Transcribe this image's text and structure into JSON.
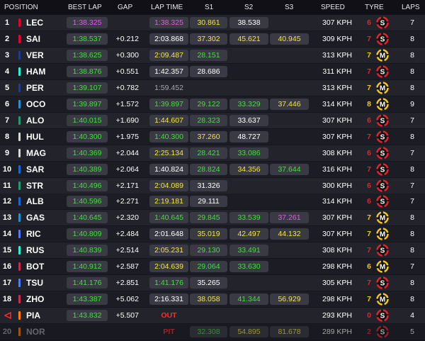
{
  "header": {
    "columns": [
      "POSITION",
      "BEST LAP",
      "GAP",
      "LAP TIME",
      "S1",
      "S2",
      "S3",
      "SPEED",
      "TYRE",
      "LAPS"
    ]
  },
  "status_colors": {
    "purple": "#e05ce6",
    "green": "#3fe03a",
    "yellow": "#f4e63c",
    "white": "#ffffff",
    "grey": "#a8a8ae",
    "red": "#ff2b2b"
  },
  "rows": [
    {
      "position": 1,
      "team_color": "#e8002d",
      "driver": "LEC",
      "best_lap": {
        "text": "1:38.325",
        "status": "purple"
      },
      "gap": null,
      "lap_time": {
        "text": "1:38.325",
        "status": "purple"
      },
      "s1": {
        "text": "30.861",
        "status": "yellow"
      },
      "s2": {
        "text": "38.538",
        "status": "white"
      },
      "s3": null,
      "speed": "307 KPH",
      "tyre": {
        "laps": 6,
        "compound": "S",
        "color": "#e8222d"
      },
      "laps": 7
    },
    {
      "position": 2,
      "team_color": "#e8002d",
      "driver": "SAI",
      "best_lap": {
        "text": "1:38.537",
        "status": "green"
      },
      "gap": "+0.212",
      "lap_time": {
        "text": "2:03.868",
        "status": "white"
      },
      "s1": {
        "text": "37.302",
        "status": "yellow"
      },
      "s2": {
        "text": "45.621",
        "status": "yellow"
      },
      "s3": {
        "text": "40.945",
        "status": "yellow"
      },
      "speed": "309 KPH",
      "tyre": {
        "laps": 7,
        "compound": "S",
        "color": "#e8222d"
      },
      "laps": 8
    },
    {
      "position": 3,
      "team_color": "#1e3d8f",
      "driver": "VER",
      "best_lap": {
        "text": "1:38.625",
        "status": "green"
      },
      "gap": "+0.300",
      "lap_time": {
        "text": "2:09.487",
        "status": "yellow"
      },
      "s1": {
        "text": "28.151",
        "status": "green"
      },
      "s2": null,
      "s3": null,
      "speed": "313 KPH",
      "tyre": {
        "laps": 7,
        "compound": "M",
        "color": "#f3c71b"
      },
      "laps": 8
    },
    {
      "position": 4,
      "team_color": "#27f4d2",
      "driver": "HAM",
      "best_lap": {
        "text": "1:38.876",
        "status": "green"
      },
      "gap": "+0.551",
      "lap_time": {
        "text": "1:42.357",
        "status": "white"
      },
      "s1": {
        "text": "28.686",
        "status": "white"
      },
      "s2": null,
      "s3": null,
      "speed": "311 KPH",
      "tyre": {
        "laps": 7,
        "compound": "S",
        "color": "#e8222d"
      },
      "laps": 8
    },
    {
      "position": 5,
      "team_color": "#1e3d8f",
      "driver": "PER",
      "best_lap": {
        "text": "1:39.107",
        "status": "green"
      },
      "gap": "+0.782",
      "lap_time": {
        "text": "1:59.452",
        "status": "grey"
      },
      "s1": null,
      "s2": null,
      "s3": null,
      "speed": "313 KPH",
      "tyre": {
        "laps": 7,
        "compound": "M",
        "color": "#f3c71b"
      },
      "laps": 8
    },
    {
      "position": 6,
      "team_color": "#2293d1",
      "driver": "OCO",
      "best_lap": {
        "text": "1:39.897",
        "status": "green"
      },
      "gap": "+1.572",
      "lap_time": {
        "text": "1:39.897",
        "status": "green"
      },
      "s1": {
        "text": "29.122",
        "status": "green"
      },
      "s2": {
        "text": "33.329",
        "status": "green"
      },
      "s3": {
        "text": "37.446",
        "status": "yellow"
      },
      "speed": "314 KPH",
      "tyre": {
        "laps": 8,
        "compound": "M",
        "color": "#f3c71b"
      },
      "laps": 9
    },
    {
      "position": 7,
      "team_color": "#229971",
      "driver": "ALO",
      "best_lap": {
        "text": "1:40.015",
        "status": "green"
      },
      "gap": "+1.690",
      "lap_time": {
        "text": "1:44.607",
        "status": "yellow"
      },
      "s1": {
        "text": "28.323",
        "status": "green"
      },
      "s2": {
        "text": "33.637",
        "status": "white"
      },
      "s3": null,
      "speed": "307 KPH",
      "tyre": {
        "laps": 6,
        "compound": "S",
        "color": "#e8222d"
      },
      "laps": 7
    },
    {
      "position": 8,
      "team_color": "#d8d8d8",
      "driver": "HUL",
      "best_lap": {
        "text": "1:40.300",
        "status": "green"
      },
      "gap": "+1.975",
      "lap_time": {
        "text": "1:40.300",
        "status": "green"
      },
      "s1": {
        "text": "37.260",
        "status": "yellow"
      },
      "s2": {
        "text": "48.727",
        "status": "white"
      },
      "s3": null,
      "speed": "307 KPH",
      "tyre": {
        "laps": 7,
        "compound": "S",
        "color": "#e8222d"
      },
      "laps": 8
    },
    {
      "position": 9,
      "team_color": "#d8d8d8",
      "driver": "MAG",
      "best_lap": {
        "text": "1:40.369",
        "status": "green"
      },
      "gap": "+2.044",
      "lap_time": {
        "text": "2:25.134",
        "status": "yellow"
      },
      "s1": {
        "text": "28.421",
        "status": "green"
      },
      "s2": {
        "text": "33.086",
        "status": "green"
      },
      "s3": null,
      "speed": "308 KPH",
      "tyre": {
        "laps": 6,
        "compound": "S",
        "color": "#e8222d"
      },
      "laps": 7
    },
    {
      "position": 10,
      "team_color": "#1868db",
      "driver": "SAR",
      "best_lap": {
        "text": "1:40.389",
        "status": "green"
      },
      "gap": "+2.064",
      "lap_time": {
        "text": "1:40.824",
        "status": "white"
      },
      "s1": {
        "text": "28.824",
        "status": "green"
      },
      "s2": {
        "text": "34.356",
        "status": "yellow"
      },
      "s3": {
        "text": "37.644",
        "status": "green"
      },
      "speed": "316 KPH",
      "tyre": {
        "laps": 7,
        "compound": "S",
        "color": "#e8222d"
      },
      "laps": 8
    },
    {
      "position": 11,
      "team_color": "#229971",
      "driver": "STR",
      "best_lap": {
        "text": "1:40.496",
        "status": "green"
      },
      "gap": "+2.171",
      "lap_time": {
        "text": "2:04.089",
        "status": "yellow"
      },
      "s1": {
        "text": "31.326",
        "status": "white"
      },
      "s2": null,
      "s3": null,
      "speed": "300 KPH",
      "tyre": {
        "laps": 6,
        "compound": "S",
        "color": "#e8222d"
      },
      "laps": 7
    },
    {
      "position": 12,
      "team_color": "#1868db",
      "driver": "ALB",
      "best_lap": {
        "text": "1:40.596",
        "status": "green"
      },
      "gap": "+2.271",
      "lap_time": {
        "text": "2:19.181",
        "status": "yellow"
      },
      "s1": {
        "text": "29.111",
        "status": "white"
      },
      "s2": null,
      "s3": null,
      "speed": "314 KPH",
      "tyre": {
        "laps": 6,
        "compound": "S",
        "color": "#e8222d"
      },
      "laps": 7
    },
    {
      "position": 13,
      "team_color": "#2293d1",
      "driver": "GAS",
      "best_lap": {
        "text": "1:40.645",
        "status": "green"
      },
      "gap": "+2.320",
      "lap_time": {
        "text": "1:40.645",
        "status": "green"
      },
      "s1": {
        "text": "29.845",
        "status": "green"
      },
      "s2": {
        "text": "33.539",
        "status": "green"
      },
      "s3": {
        "text": "37.261",
        "status": "purple"
      },
      "speed": "307 KPH",
      "tyre": {
        "laps": 7,
        "compound": "M",
        "color": "#f3c71b"
      },
      "laps": 8
    },
    {
      "position": 14,
      "team_color": "#4e7cff",
      "driver": "RIC",
      "best_lap": {
        "text": "1:40.809",
        "status": "green"
      },
      "gap": "+2.484",
      "lap_time": {
        "text": "2:01.648",
        "status": "white"
      },
      "s1": {
        "text": "35.019",
        "status": "yellow"
      },
      "s2": {
        "text": "42.497",
        "status": "yellow"
      },
      "s3": {
        "text": "44.132",
        "status": "yellow"
      },
      "speed": "307 KPH",
      "tyre": {
        "laps": 7,
        "compound": "M",
        "color": "#f3c71b"
      },
      "laps": 8
    },
    {
      "position": 15,
      "team_color": "#27f4d2",
      "driver": "RUS",
      "best_lap": {
        "text": "1:40.839",
        "status": "green"
      },
      "gap": "+2.514",
      "lap_time": {
        "text": "2:05.231",
        "status": "yellow"
      },
      "s1": {
        "text": "29.130",
        "status": "green"
      },
      "s2": {
        "text": "33.491",
        "status": "green"
      },
      "s3": null,
      "speed": "308 KPH",
      "tyre": {
        "laps": 7,
        "compound": "S",
        "color": "#e8222d"
      },
      "laps": 8
    },
    {
      "position": 16,
      "team_color": "#c92d4b",
      "driver": "BOT",
      "best_lap": {
        "text": "1:40.912",
        "status": "green"
      },
      "gap": "+2.587",
      "lap_time": {
        "text": "2:04.639",
        "status": "yellow"
      },
      "s1": {
        "text": "29.064",
        "status": "green"
      },
      "s2": {
        "text": "33.630",
        "status": "green"
      },
      "s3": null,
      "speed": "298 KPH",
      "tyre": {
        "laps": 6,
        "compound": "M",
        "color": "#f3c71b"
      },
      "laps": 7
    },
    {
      "position": 17,
      "team_color": "#4e7cff",
      "driver": "TSU",
      "best_lap": {
        "text": "1:41.176",
        "status": "green"
      },
      "gap": "+2.851",
      "lap_time": {
        "text": "1:41.176",
        "status": "green"
      },
      "s1": {
        "text": "35.265",
        "status": "white"
      },
      "s2": null,
      "s3": null,
      "speed": "305 KPH",
      "tyre": {
        "laps": 7,
        "compound": "S",
        "color": "#e8222d"
      },
      "laps": 8
    },
    {
      "position": 18,
      "team_color": "#c92d4b",
      "driver": "ZHO",
      "best_lap": {
        "text": "1:43.387",
        "status": "green"
      },
      "gap": "+5.062",
      "lap_time": {
        "text": "2:16.331",
        "status": "white"
      },
      "s1": {
        "text": "38.058",
        "status": "yellow"
      },
      "s2": {
        "text": "41.344",
        "status": "green"
      },
      "s3": {
        "text": "56.929",
        "status": "yellow"
      },
      "speed": "298 KPH",
      "tyre": {
        "laps": 7,
        "compound": "M",
        "color": "#f3c71b"
      },
      "laps": 8
    },
    {
      "position": null,
      "team_color": "#ff8000",
      "driver": "PIA",
      "best_lap": {
        "text": "1:43.832",
        "status": "green"
      },
      "gap": "+5.507",
      "lap_time": {
        "text": "OUT",
        "status": "red"
      },
      "s1": null,
      "s2": null,
      "s3": null,
      "speed": "293 KPH",
      "tyre": {
        "laps": 0,
        "compound": "S",
        "color": "#e8222d"
      },
      "laps": 4
    },
    {
      "position": 20,
      "team_color": "#ff8000",
      "driver": "NOR",
      "dimmed": true,
      "best_lap": null,
      "gap": null,
      "lap_time": {
        "text": "PIT",
        "status": "red"
      },
      "s1": {
        "text": "32.308",
        "status": "green"
      },
      "s2": {
        "text": "54.895",
        "status": "yellow"
      },
      "s3": {
        "text": "81.678",
        "status": "yellow"
      },
      "speed": "289 KPH",
      "tyre": {
        "laps": 2,
        "compound": "S",
        "color": "#e8222d"
      },
      "laps": 5
    }
  ]
}
